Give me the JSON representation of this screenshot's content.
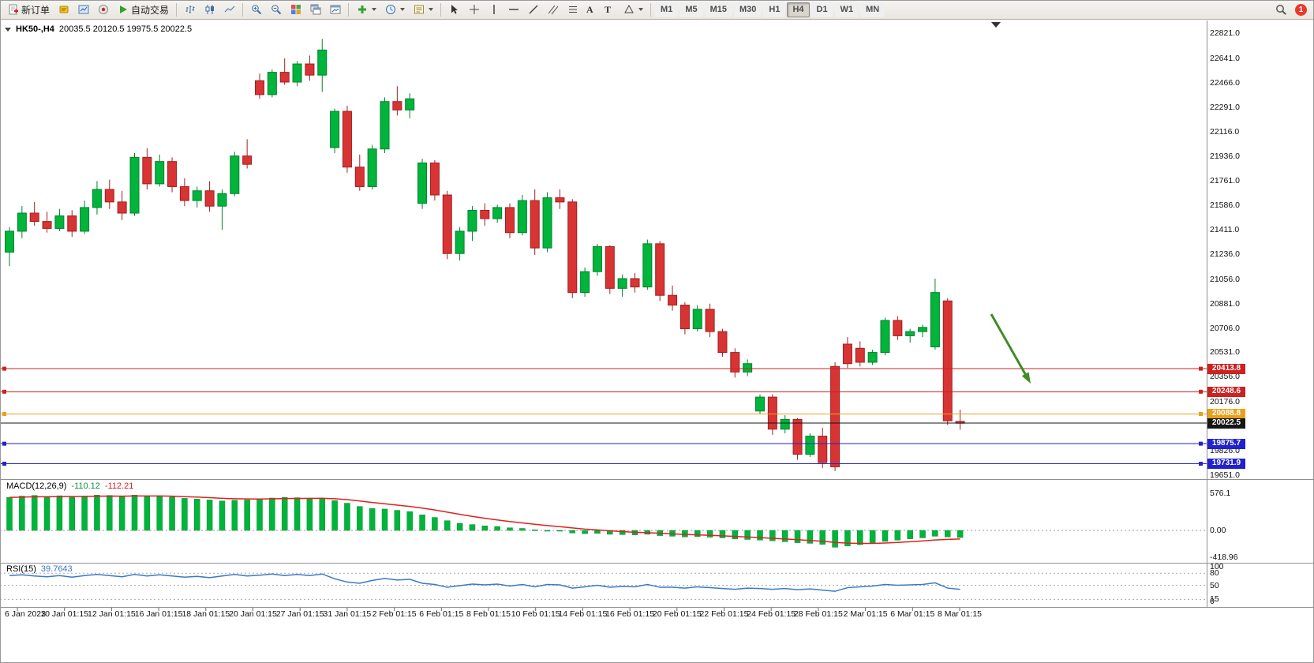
{
  "toolbar": {
    "new_order_label": "新订单",
    "autotrading_label": "自动交易",
    "text_tool": "A",
    "label_tool": "T",
    "timeframes": [
      "M1",
      "M5",
      "M15",
      "M30",
      "H1",
      "H4",
      "D1",
      "W1",
      "MN"
    ],
    "active_timeframe": "H4",
    "notification_count": "1"
  },
  "header": {
    "symbol_period": "HK50-,H4",
    "ohlc": "20035.5 20120.5 19975.5 20022.5"
  },
  "price_axis": {
    "ticks": [
      "22821.0",
      "22641.0",
      "22466.0",
      "22291.0",
      "22116.0",
      "21936.0",
      "21761.0",
      "21586.0",
      "21411.0",
      "21236.0",
      "21056.0",
      "20881.0",
      "20706.0",
      "20531.0",
      "20356.0",
      "20176.0",
      "19826.0",
      "19651.0"
    ]
  },
  "time_axis": {
    "labels": [
      "6 Jan 2023",
      "10 Jan 01:15",
      "12 Jan 01:15",
      "16 Jan 01:15",
      "18 Jan 01:15",
      "20 Jan 01:15",
      "27 Jan 01:15",
      "31 Jan 01:15",
      "2 Feb 01:15",
      "6 Feb 01:15",
      "8 Feb 01:15",
      "10 Feb 01:15",
      "14 Feb 01:15",
      "16 Feb 01:15",
      "20 Feb 01:15",
      "22 Feb 01:15",
      "24 Feb 01:15",
      "28 Feb 01:15",
      "2 Mar 01:15",
      "6 Mar 01:15",
      "8 Mar 01:15"
    ]
  },
  "indicators": {
    "macd": {
      "name": "MACD(12,26,9)",
      "value": "-110.12",
      "signal": "-112.21",
      "axis": [
        "576.1",
        "0.00",
        "-418.96"
      ]
    },
    "rsi": {
      "name": "RSI(15)",
      "value": "39.7643",
      "axis": [
        "100",
        "80",
        "50",
        "15",
        "0"
      ]
    }
  },
  "chart_data": {
    "type": "candlestick",
    "title": "HK50-,H4",
    "current_bar": {
      "open": 20035.5,
      "high": 20120.5,
      "low": 19975.5,
      "close": 20022.5
    },
    "y_range": [
      19651.0,
      22821.0
    ],
    "candles": [
      [
        21250,
        21430,
        21150,
        21400
      ],
      [
        21400,
        21580,
        21350,
        21530
      ],
      [
        21530,
        21610,
        21440,
        21470
      ],
      [
        21470,
        21540,
        21390,
        21420
      ],
      [
        21420,
        21560,
        21400,
        21510
      ],
      [
        21510,
        21550,
        21360,
        21400
      ],
      [
        21400,
        21620,
        21380,
        21570
      ],
      [
        21570,
        21760,
        21520,
        21700
      ],
      [
        21700,
        21770,
        21560,
        21610
      ],
      [
        21610,
        21690,
        21480,
        21530
      ],
      [
        21530,
        21960,
        21510,
        21930
      ],
      [
        21930,
        21995,
        21700,
        21740
      ],
      [
        21740,
        21950,
        21720,
        21900
      ],
      [
        21900,
        21930,
        21680,
        21720
      ],
      [
        21720,
        21780,
        21580,
        21620
      ],
      [
        21620,
        21720,
        21570,
        21690
      ],
      [
        21690,
        21760,
        21540,
        21580
      ],
      [
        21580,
        21700,
        21410,
        21670
      ],
      [
        21670,
        21970,
        21650,
        21940
      ],
      [
        21940,
        22060,
        21850,
        21880
      ],
      [
        22480,
        22530,
        22350,
        22380
      ],
      [
        22380,
        22560,
        22360,
        22540
      ],
      [
        22540,
        22640,
        22450,
        22470
      ],
      [
        22470,
        22620,
        22440,
        22600
      ],
      [
        22600,
        22660,
        22480,
        22520
      ],
      [
        22520,
        22780,
        22400,
        22700
      ],
      [
        22000,
        22280,
        21960,
        22260
      ],
      [
        22260,
        22300,
        21820,
        21860
      ],
      [
        21860,
        21950,
        21690,
        21720
      ],
      [
        21720,
        22020,
        21700,
        21990
      ],
      [
        21990,
        22360,
        21960,
        22330
      ],
      [
        22330,
        22440,
        22230,
        22270
      ],
      [
        22270,
        22390,
        22210,
        22350
      ],
      [
        21600,
        21920,
        21560,
        21890
      ],
      [
        21890,
        21910,
        21620,
        21660
      ],
      [
        21660,
        21690,
        21200,
        21240
      ],
      [
        21240,
        21430,
        21190,
        21400
      ],
      [
        21400,
        21580,
        21330,
        21550
      ],
      [
        21550,
        21600,
        21440,
        21490
      ],
      [
        21490,
        21590,
        21460,
        21570
      ],
      [
        21570,
        21600,
        21350,
        21390
      ],
      [
        21390,
        21660,
        21370,
        21620
      ],
      [
        21620,
        21700,
        21230,
        21280
      ],
      [
        21280,
        21680,
        21250,
        21640
      ],
      [
        21640,
        21700,
        21560,
        21610
      ],
      [
        21610,
        21630,
        20920,
        20960
      ],
      [
        20960,
        21140,
        20930,
        21110
      ],
      [
        21110,
        21310,
        21080,
        21290
      ],
      [
        21290,
        21300,
        20950,
        20990
      ],
      [
        20990,
        21090,
        20930,
        21060
      ],
      [
        21060,
        21100,
        20960,
        21000
      ],
      [
        21000,
        21340,
        20980,
        21310
      ],
      [
        21310,
        21330,
        20900,
        20940
      ],
      [
        20940,
        21010,
        20830,
        20870
      ],
      [
        20870,
        20890,
        20660,
        20700
      ],
      [
        20700,
        20870,
        20680,
        20840
      ],
      [
        20840,
        20880,
        20640,
        20680
      ],
      [
        20680,
        20700,
        20500,
        20530
      ],
      [
        20530,
        20560,
        20350,
        20390
      ],
      [
        20390,
        20480,
        20360,
        20450
      ],
      [
        20110,
        20230,
        20090,
        20210
      ],
      [
        20210,
        20230,
        19940,
        19980
      ],
      [
        19980,
        20080,
        19950,
        20050
      ],
      [
        20050,
        20060,
        19760,
        19800
      ],
      [
        19800,
        19950,
        19780,
        19930
      ],
      [
        19930,
        19990,
        19700,
        19740
      ],
      [
        20430,
        20460,
        19680,
        19710
      ],
      [
        20590,
        20640,
        20420,
        20450
      ],
      [
        20560,
        20610,
        20430,
        20460
      ],
      [
        20460,
        20550,
        20440,
        20530
      ],
      [
        20530,
        20780,
        20510,
        20760
      ],
      [
        20760,
        20790,
        20620,
        20650
      ],
      [
        20650,
        20700,
        20600,
        20680
      ],
      [
        20680,
        20730,
        20640,
        20710
      ],
      [
        20570,
        21060,
        20550,
        20960
      ],
      [
        20900,
        20920,
        20010,
        20040
      ],
      [
        20035.5,
        20120.5,
        19975.5,
        20022.5
      ]
    ],
    "hlines": [
      {
        "label": "20413.8",
        "value": 20413.8,
        "color": "#cc2222"
      },
      {
        "label": "20248.6",
        "value": 20248.6,
        "color": "#cc2222"
      },
      {
        "label": "20088.8",
        "value": 20088.8,
        "color": "#e8a11d"
      },
      {
        "label": "19875.7",
        "value": 19875.7,
        "color": "#2222cc"
      },
      {
        "label": "19731.9",
        "value": 19731.9,
        "color": "#2222cc"
      }
    ],
    "current_price": {
      "label": "20022.5",
      "value": 20022.5,
      "color": "#161616"
    },
    "macd_histogram": [
      510,
      530,
      540,
      525,
      535,
      520,
      530,
      545,
      540,
      520,
      545,
      530,
      535,
      515,
      495,
      485,
      470,
      455,
      465,
      470,
      480,
      500,
      510,
      505,
      495,
      500,
      460,
      420,
      370,
      340,
      330,
      310,
      290,
      240,
      200,
      150,
      110,
      90,
      70,
      60,
      40,
      30,
      10,
      -5,
      -10,
      -40,
      -50,
      -45,
      -60,
      -65,
      -70,
      -60,
      -80,
      -90,
      -100,
      -95,
      -105,
      -115,
      -130,
      -140,
      -150,
      -160,
      -175,
      -190,
      -200,
      -215,
      -260,
      -240,
      -220,
      -200,
      -170,
      -150,
      -130,
      -115,
      -90,
      -100,
      -110
    ],
    "rsi_values": [
      74,
      76,
      73,
      71,
      74,
      70,
      74,
      77,
      74,
      71,
      77,
      73,
      76,
      73,
      70,
      72,
      69,
      73,
      77,
      73,
      75,
      78,
      74,
      77,
      74,
      78,
      66,
      58,
      55,
      62,
      67,
      63,
      65,
      55,
      52,
      45,
      49,
      53,
      51,
      53,
      48,
      52,
      46,
      52,
      51,
      43,
      46,
      50,
      45,
      47,
      46,
      52,
      45,
      45,
      43,
      46,
      44,
      42,
      40,
      43,
      42,
      40,
      42,
      39,
      41,
      38,
      35,
      44,
      46,
      48,
      52,
      50,
      51,
      52,
      56,
      43,
      39.76
    ],
    "rsi_levels": [
      80,
      50,
      15
    ],
    "arrow": {
      "from": [
        1256,
        398
      ],
      "to": [
        1306,
        486
      ]
    }
  },
  "colors": {
    "up": "#00b43c",
    "up_stroke": "#00822c",
    "down": "#d83434",
    "down_stroke": "#a01f1f",
    "macd_bar": "#00b43c",
    "macd_signal": "#e02020",
    "rsi_line": "#3c78c8",
    "arrow_green": "#3f8c28"
  }
}
